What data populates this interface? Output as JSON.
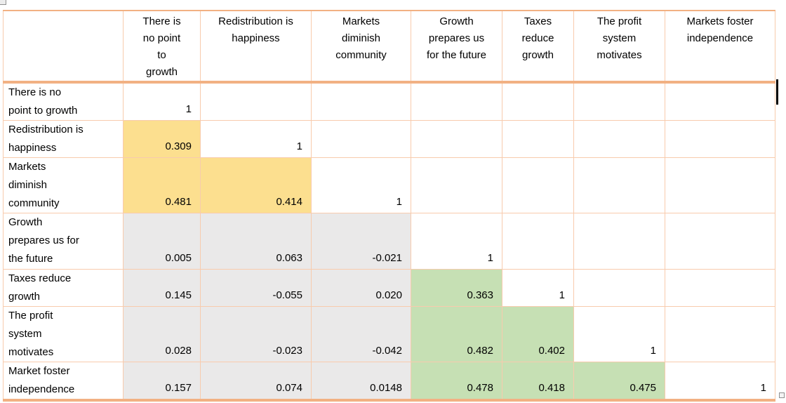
{
  "colors": {
    "border_thin": "#F8CBAD",
    "border_thick": "#F2B183",
    "cell_yellow": "#FCDF8F",
    "cell_green": "#C6E0B4",
    "cell_gray": "#EAE9E9",
    "text": "#000000"
  },
  "artifacts": {
    "anchor_icon": "object-anchor",
    "text_cursor": "text-cursor",
    "resize_handle": "table-resize-handle"
  },
  "table": {
    "corner": "",
    "columns": [
      "There is no point to growth",
      "Redistribution is happiness",
      "Markets diminish community",
      "Growth prepares us for the future",
      "Taxes reduce growth",
      "The profit system motivates",
      "Markets foster independence"
    ],
    "rows": [
      {
        "label": "There is no point to growth",
        "cells": [
          {
            "v": "1",
            "bg": ""
          },
          {
            "v": "",
            "bg": ""
          },
          {
            "v": "",
            "bg": ""
          },
          {
            "v": "",
            "bg": ""
          },
          {
            "v": "",
            "bg": ""
          },
          {
            "v": "",
            "bg": ""
          },
          {
            "v": "",
            "bg": ""
          }
        ]
      },
      {
        "label": "Redistribution is happiness",
        "cells": [
          {
            "v": "0.309",
            "bg": "yellow"
          },
          {
            "v": "1",
            "bg": ""
          },
          {
            "v": "",
            "bg": ""
          },
          {
            "v": "",
            "bg": ""
          },
          {
            "v": "",
            "bg": ""
          },
          {
            "v": "",
            "bg": ""
          },
          {
            "v": "",
            "bg": ""
          }
        ]
      },
      {
        "label": "Markets diminish community",
        "cells": [
          {
            "v": "0.481",
            "bg": "yellow"
          },
          {
            "v": "0.414",
            "bg": "yellow"
          },
          {
            "v": "1",
            "bg": ""
          },
          {
            "v": "",
            "bg": ""
          },
          {
            "v": "",
            "bg": ""
          },
          {
            "v": "",
            "bg": ""
          },
          {
            "v": "",
            "bg": ""
          }
        ]
      },
      {
        "label": "Growth prepares us for the future",
        "cells": [
          {
            "v": "0.005",
            "bg": "gray"
          },
          {
            "v": "0.063",
            "bg": "gray"
          },
          {
            "v": "-0.021",
            "bg": "gray"
          },
          {
            "v": "1",
            "bg": ""
          },
          {
            "v": "",
            "bg": ""
          },
          {
            "v": "",
            "bg": ""
          },
          {
            "v": "",
            "bg": ""
          }
        ]
      },
      {
        "label": "Taxes reduce growth",
        "cells": [
          {
            "v": "0.145",
            "bg": "gray"
          },
          {
            "v": "-0.055",
            "bg": "gray"
          },
          {
            "v": "0.020",
            "bg": "gray"
          },
          {
            "v": "0.363",
            "bg": "green"
          },
          {
            "v": "1",
            "bg": ""
          },
          {
            "v": "",
            "bg": ""
          },
          {
            "v": "",
            "bg": ""
          }
        ]
      },
      {
        "label": "The profit system motivates",
        "cells": [
          {
            "v": "0.028",
            "bg": "gray"
          },
          {
            "v": "-0.023",
            "bg": "gray"
          },
          {
            "v": "-0.042",
            "bg": "gray"
          },
          {
            "v": "0.482",
            "bg": "green"
          },
          {
            "v": "0.402",
            "bg": "green"
          },
          {
            "v": "1",
            "bg": ""
          },
          {
            "v": "",
            "bg": ""
          }
        ]
      },
      {
        "label": "Market foster independence",
        "cells": [
          {
            "v": "0.157",
            "bg": "gray"
          },
          {
            "v": "0.074",
            "bg": "gray"
          },
          {
            "v": "0.0148",
            "bg": "gray"
          },
          {
            "v": "0.478",
            "bg": "green"
          },
          {
            "v": "0.418",
            "bg": "green"
          },
          {
            "v": "0.475",
            "bg": "green"
          },
          {
            "v": "1",
            "bg": ""
          }
        ]
      }
    ]
  }
}
